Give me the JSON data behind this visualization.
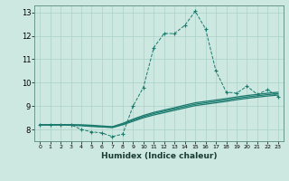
{
  "xlabel": "Humidex (Indice chaleur)",
  "background_color": "#cce8e0",
  "grid_color": "#aad0c8",
  "line_color": "#1a7a6e",
  "xlim": [
    -0.5,
    23.5
  ],
  "ylim": [
    7.5,
    13.3
  ],
  "xticks": [
    0,
    1,
    2,
    3,
    4,
    5,
    6,
    7,
    8,
    9,
    10,
    11,
    12,
    13,
    14,
    15,
    16,
    17,
    18,
    19,
    20,
    21,
    22,
    23
  ],
  "yticks": [
    8,
    9,
    10,
    11,
    12,
    13
  ],
  "s1_x": [
    0,
    1,
    2,
    3,
    4,
    5,
    6,
    7,
    8,
    9,
    10,
    11,
    12,
    13,
    14,
    15,
    16,
    17,
    18,
    19,
    20,
    21,
    22,
    23
  ],
  "s1_y": [
    8.2,
    8.2,
    8.2,
    8.2,
    8.0,
    7.9,
    7.85,
    7.7,
    7.8,
    9.0,
    9.8,
    11.5,
    12.1,
    12.1,
    12.45,
    13.05,
    12.3,
    10.5,
    9.6,
    9.55,
    9.85,
    9.5,
    9.7,
    9.4
  ],
  "s2_x": [
    0,
    1,
    2,
    3,
    4,
    5,
    6,
    7,
    8,
    9,
    10,
    11,
    12,
    13,
    14,
    15,
    16,
    17,
    18,
    19,
    20,
    21,
    22,
    23
  ],
  "s2_y": [
    8.2,
    8.2,
    8.2,
    8.18,
    8.16,
    8.13,
    8.11,
    8.08,
    8.2,
    8.35,
    8.5,
    8.62,
    8.72,
    8.82,
    8.92,
    9.02,
    9.08,
    9.14,
    9.2,
    9.27,
    9.33,
    9.38,
    9.43,
    9.47
  ],
  "s3_x": [
    0,
    1,
    2,
    3,
    4,
    5,
    6,
    7,
    8,
    9,
    10,
    11,
    12,
    13,
    14,
    15,
    16,
    17,
    18,
    19,
    20,
    21,
    22,
    23
  ],
  "s3_y": [
    8.2,
    8.2,
    8.2,
    8.2,
    8.18,
    8.15,
    8.12,
    8.1,
    8.23,
    8.4,
    8.55,
    8.68,
    8.78,
    8.88,
    8.98,
    9.08,
    9.14,
    9.2,
    9.26,
    9.33,
    9.39,
    9.44,
    9.49,
    9.53
  ],
  "s4_x": [
    0,
    1,
    2,
    3,
    4,
    5,
    6,
    7,
    8,
    9,
    10,
    11,
    12,
    13,
    14,
    15,
    16,
    17,
    18,
    19,
    20,
    21,
    22,
    23
  ],
  "s4_y": [
    8.2,
    8.2,
    8.2,
    8.2,
    8.2,
    8.18,
    8.15,
    8.12,
    8.26,
    8.44,
    8.6,
    8.73,
    8.83,
    8.93,
    9.04,
    9.14,
    9.2,
    9.26,
    9.32,
    9.39,
    9.45,
    9.5,
    9.55,
    9.59
  ]
}
